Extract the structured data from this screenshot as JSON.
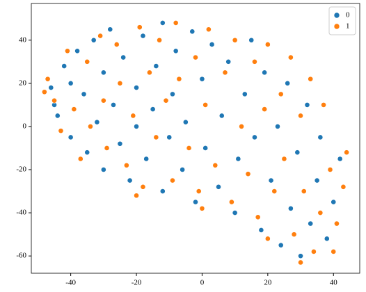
{
  "chart_data": {
    "type": "scatter",
    "xlim": [
      -52,
      48
    ],
    "ylim": [
      -68,
      57
    ],
    "xticks": [
      -40,
      -20,
      0,
      20,
      40
    ],
    "yticks": [
      -60,
      -40,
      -20,
      0,
      20,
      40
    ],
    "grid": false,
    "legend": "upper right",
    "series": [
      {
        "name": "0",
        "color": "#1f77b4",
        "x": [
          -46,
          -44,
          -42,
          -40,
          -38,
          -36,
          -35,
          -33,
          -32,
          -30,
          -30,
          -28,
          -27,
          -25,
          -24,
          -22,
          -20,
          -20,
          -18,
          -17,
          -15,
          -14,
          -12,
          -12,
          -10,
          -9,
          -8,
          -6,
          -5,
          -3,
          -2,
          0,
          1,
          3,
          5,
          6,
          8,
          10,
          11,
          13,
          15,
          16,
          18,
          19,
          21,
          23,
          24,
          26,
          27,
          29,
          30,
          32,
          33,
          35,
          36,
          38,
          40,
          42,
          -45,
          -40
        ],
        "values": [
          18,
          5,
          28,
          -5,
          35,
          15,
          -12,
          40,
          2,
          25,
          -20,
          45,
          10,
          -8,
          32,
          -25,
          18,
          0,
          42,
          -15,
          8,
          28,
          -30,
          48,
          -5,
          15,
          35,
          -20,
          2,
          44,
          -35,
          22,
          -10,
          38,
          -28,
          5,
          30,
          -40,
          -15,
          15,
          40,
          -5,
          -48,
          25,
          -25,
          0,
          -55,
          20,
          -38,
          -12,
          -60,
          10,
          -45,
          -25,
          -5,
          -52,
          -35,
          -15,
          10,
          20
        ]
      },
      {
        "name": "1",
        "color": "#ff7f0e",
        "x": [
          -47,
          -45,
          -43,
          -41,
          -39,
          -37,
          -35,
          -34,
          -31,
          -30,
          -29,
          -26,
          -25,
          -23,
          -21,
          -19,
          -18,
          -16,
          -14,
          -13,
          -11,
          -9,
          -8,
          -7,
          -4,
          -2,
          -1,
          1,
          2,
          4,
          7,
          9,
          10,
          12,
          14,
          16,
          17,
          19,
          20,
          22,
          24,
          25,
          27,
          28,
          30,
          31,
          33,
          34,
          36,
          37,
          39,
          41,
          43,
          44,
          30,
          40,
          -48,
          -20,
          0,
          20
        ],
        "values": [
          22,
          12,
          -2,
          35,
          8,
          -15,
          30,
          0,
          42,
          12,
          -10,
          38,
          20,
          -18,
          5,
          46,
          -28,
          25,
          -5,
          40,
          12,
          -25,
          48,
          22,
          -10,
          32,
          -30,
          10,
          45,
          -18,
          25,
          -35,
          40,
          0,
          -22,
          30,
          -42,
          8,
          38,
          -30,
          15,
          -15,
          32,
          -50,
          5,
          -30,
          22,
          -58,
          -40,
          10,
          -20,
          -45,
          -28,
          -12,
          -63,
          -58,
          16,
          -32,
          -38,
          -52
        ]
      }
    ]
  }
}
